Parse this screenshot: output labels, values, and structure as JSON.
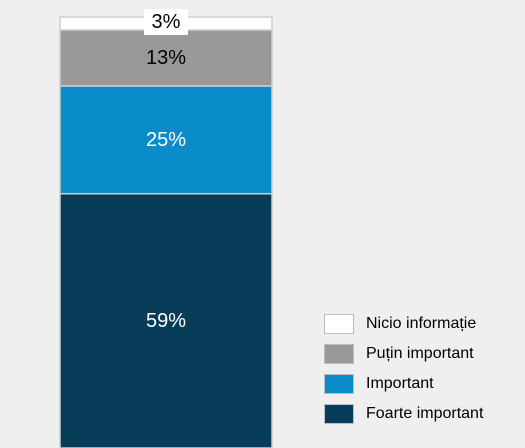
{
  "chart_data": {
    "type": "bar",
    "stacked": true,
    "categories": [
      ""
    ],
    "series": [
      {
        "name": "Foarte important",
        "values": [
          59
        ],
        "label": "59%",
        "color": "#073d58"
      },
      {
        "name": "Important",
        "values": [
          25
        ],
        "label": "25%",
        "color": "#0a8ccb"
      },
      {
        "name": "Puțin important",
        "values": [
          13
        ],
        "label": "13%",
        "color": "#999999"
      },
      {
        "name": "Nicio informație",
        "values": [
          3
        ],
        "label": "3%",
        "color": "#ffffff"
      }
    ],
    "ylim": [
      0,
      100
    ],
    "grid": false,
    "legend_position": "bottom-right",
    "legend_order": [
      "Nicio informație",
      "Puțin important",
      "Important",
      "Foarte important"
    ]
  }
}
